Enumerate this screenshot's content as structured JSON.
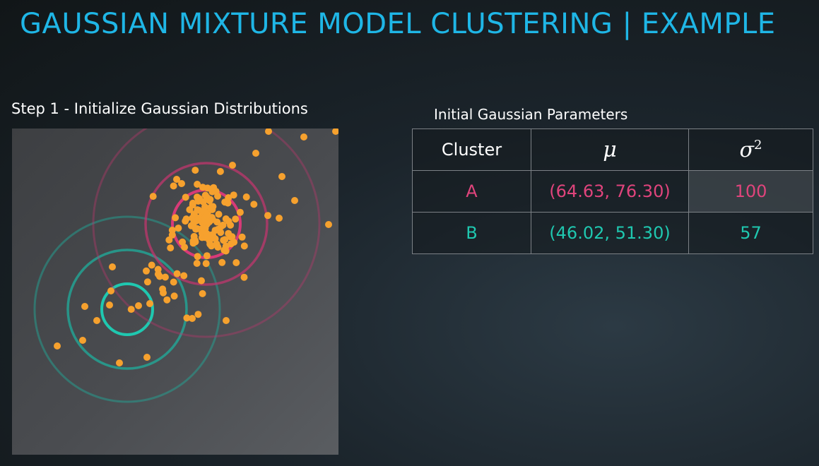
{
  "title": "GAUSSIAN MIXTURE MODEL CLUSTERING | EXAMPLE",
  "plot": {
    "caption": "Step 1 - Initialize Gaussian Distributions",
    "colors": {
      "panel": "#4a4c50",
      "points": "#f6a12e",
      "cluster_a": "#c8356f",
      "cluster_b": "#1fae9c"
    }
  },
  "table": {
    "caption": "Initial Gaussian Parameters",
    "headers": {
      "cluster": "Cluster",
      "mu": "μ",
      "sigma": "σ",
      "sigma_exp": "2"
    },
    "rows": [
      {
        "cluster": "A",
        "mu": "(64.63, 76.30)",
        "variance": "100",
        "color": "#e0447c"
      },
      {
        "cluster": "B",
        "mu": "(46.02, 51.30)",
        "variance": "57",
        "color": "#1fc8b0"
      }
    ]
  }
}
